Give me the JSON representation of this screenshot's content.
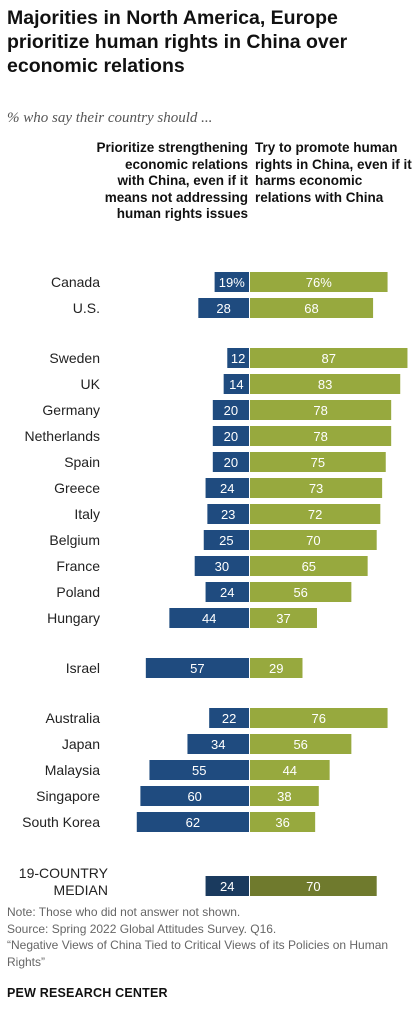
{
  "title": "Majorities in North America, Europe prioritize human rights in China over economic relations",
  "subtitle": "% who say their country should ...",
  "headers": {
    "left": "Prioritize strengthening economic relations with China, even if it means not addressing human rights issues",
    "right": "Try to promote human rights in China, even if it harms economic relations with China"
  },
  "colors": {
    "economic": "#1f4b7f",
    "rights": "#97a93e",
    "median_economic": "#1a3a5e",
    "median_rights": "#6f7a2d"
  },
  "chart_data": {
    "type": "bar",
    "orientation": "horizontal-diverging",
    "series": [
      {
        "name": "Prioritize strengthening economic relations with China, even if it means not addressing human rights issues",
        "color": "#1f4b7f"
      },
      {
        "name": "Try to promote human rights in China, even if it harms economic relations with China",
        "color": "#97a93e"
      }
    ],
    "rows": [
      {
        "label": "Canada",
        "economic": 19,
        "rights": 76,
        "economic_label": "19%",
        "rights_label": "76%",
        "group": 0
      },
      {
        "label": "U.S.",
        "economic": 28,
        "rights": 68,
        "economic_label": "28",
        "rights_label": "68",
        "group": 0
      },
      {
        "label": "Sweden",
        "economic": 12,
        "rights": 87,
        "economic_label": "12",
        "rights_label": "87",
        "group": 1
      },
      {
        "label": "UK",
        "economic": 14,
        "rights": 83,
        "economic_label": "14",
        "rights_label": "83",
        "group": 1
      },
      {
        "label": "Germany",
        "economic": 20,
        "rights": 78,
        "economic_label": "20",
        "rights_label": "78",
        "group": 1
      },
      {
        "label": "Netherlands",
        "economic": 20,
        "rights": 78,
        "economic_label": "20",
        "rights_label": "78",
        "group": 1
      },
      {
        "label": "Spain",
        "economic": 20,
        "rights": 75,
        "economic_label": "20",
        "rights_label": "75",
        "group": 1
      },
      {
        "label": "Greece",
        "economic": 24,
        "rights": 73,
        "economic_label": "24",
        "rights_label": "73",
        "group": 1
      },
      {
        "label": "Italy",
        "economic": 23,
        "rights": 72,
        "economic_label": "23",
        "rights_label": "72",
        "group": 1
      },
      {
        "label": "Belgium",
        "economic": 25,
        "rights": 70,
        "economic_label": "25",
        "rights_label": "70",
        "group": 1
      },
      {
        "label": "France",
        "economic": 30,
        "rights": 65,
        "economic_label": "30",
        "rights_label": "65",
        "group": 1
      },
      {
        "label": "Poland",
        "economic": 24,
        "rights": 56,
        "economic_label": "24",
        "rights_label": "56",
        "group": 1
      },
      {
        "label": "Hungary",
        "economic": 44,
        "rights": 37,
        "economic_label": "44",
        "rights_label": "37",
        "group": 1
      },
      {
        "label": "Israel",
        "economic": 57,
        "rights": 29,
        "economic_label": "57",
        "rights_label": "29",
        "group": 2
      },
      {
        "label": "Australia",
        "economic": 22,
        "rights": 76,
        "economic_label": "22",
        "rights_label": "76",
        "group": 3
      },
      {
        "label": "Japan",
        "economic": 34,
        "rights": 56,
        "economic_label": "34",
        "rights_label": "56",
        "group": 3
      },
      {
        "label": "Malaysia",
        "economic": 55,
        "rights": 44,
        "economic_label": "55",
        "rights_label": "44",
        "group": 3
      },
      {
        "label": "Singapore",
        "economic": 60,
        "rights": 38,
        "economic_label": "60",
        "rights_label": "38",
        "group": 3
      },
      {
        "label": "South Korea",
        "economic": 62,
        "rights": 36,
        "economic_label": "62",
        "rights_label": "36",
        "group": 3
      },
      {
        "label": "19-COUNTRY MEDIAN",
        "label_lines": [
          "19-COUNTRY",
          "MEDIAN"
        ],
        "economic": 24,
        "rights": 70,
        "economic_label": "24",
        "rights_label": "70",
        "group": 4,
        "median": true
      }
    ]
  },
  "notes": {
    "note": "Note: Those who did not answer not shown.",
    "source": "Source: Spring 2022 Global Attitudes Survey. Q16.",
    "report": "“Negative Views of China Tied to Critical Views of its Policies on Human Rights”"
  },
  "org": "PEW RESEARCH CENTER"
}
